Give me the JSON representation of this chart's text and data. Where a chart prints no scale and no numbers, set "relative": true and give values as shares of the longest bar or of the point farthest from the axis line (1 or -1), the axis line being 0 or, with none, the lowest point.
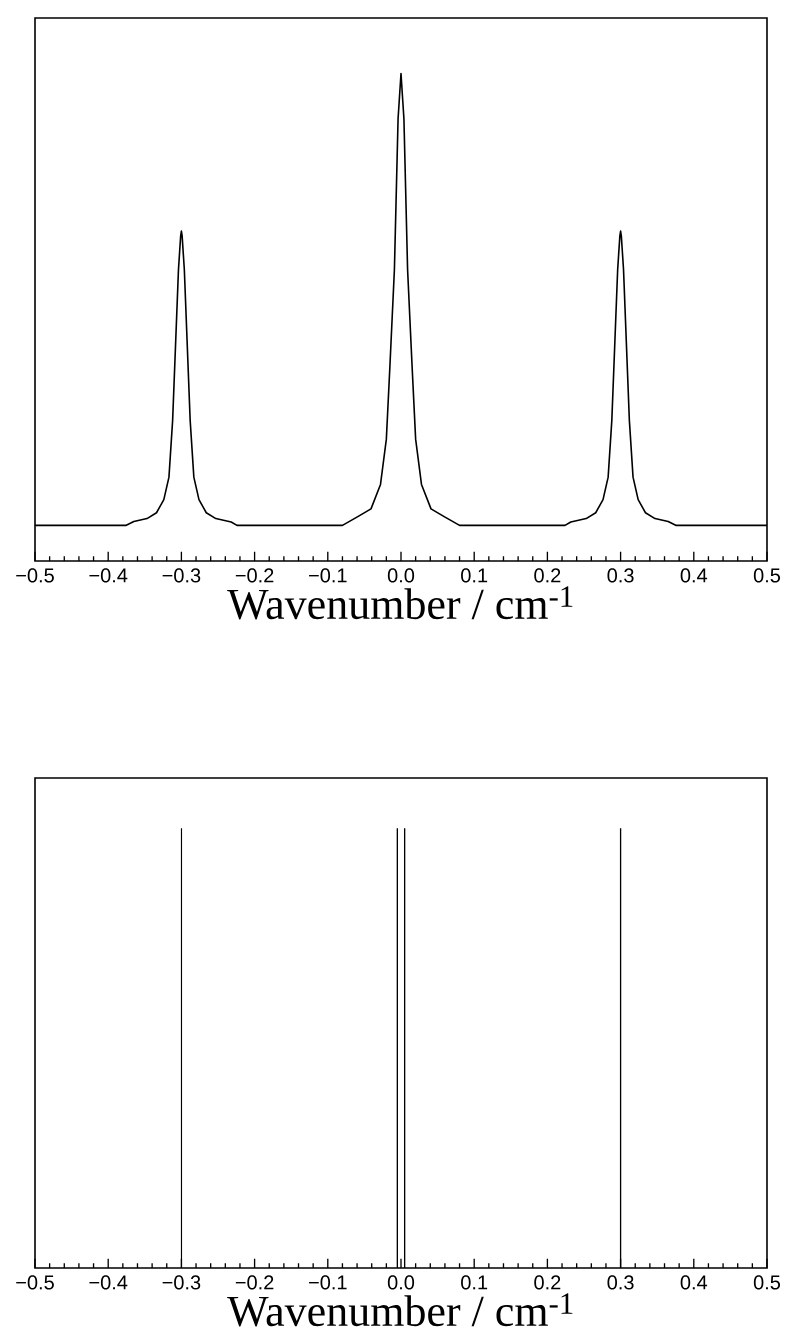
{
  "chart_data": [
    {
      "type": "line",
      "relative": true,
      "xlabel": "Wavenumber / cm$^{-1}$",
      "xlim": [
        -0.5,
        0.5
      ],
      "xticks": [
        {
          "value": -0.5,
          "label": "−0.5"
        },
        {
          "value": -0.4,
          "label": "−0.4"
        },
        {
          "value": -0.3,
          "label": "−0.3"
        },
        {
          "value": -0.2,
          "label": "−0.2"
        },
        {
          "value": -0.1,
          "label": "−0.1"
        },
        {
          "value": 0.0,
          "label": "0.0"
        },
        {
          "value": 0.1,
          "label": "0.1"
        },
        {
          "value": 0.2,
          "label": "0.2"
        },
        {
          "value": 0.3,
          "label": "0.3"
        },
        {
          "value": 0.4,
          "label": "0.4"
        },
        {
          "value": 0.5,
          "label": "0.5"
        }
      ],
      "tick_labels": "x",
      "color": "#000000",
      "x": [
        -0.5,
        -0.376,
        -0.365,
        -0.347,
        -0.334,
        -0.324,
        -0.317,
        -0.312,
        -0.308,
        -0.304,
        -0.301,
        -0.3,
        -0.299,
        -0.296,
        -0.292,
        -0.288,
        -0.283,
        -0.276,
        -0.266,
        -0.253,
        -0.232,
        -0.224,
        -0.08,
        -0.059,
        -0.041,
        -0.028,
        -0.02,
        -0.015,
        -0.009,
        -0.004,
        0.0,
        0.004,
        0.009,
        0.015,
        0.02,
        0.028,
        0.041,
        0.059,
        0.08,
        0.224,
        0.232,
        0.253,
        0.266,
        0.276,
        0.283,
        0.288,
        0.292,
        0.296,
        0.299,
        0.3,
        0.301,
        0.304,
        0.308,
        0.312,
        0.317,
        0.324,
        0.334,
        0.347,
        0.365,
        0.376,
        0.5
      ],
      "values": [
        0.073,
        0.073,
        0.081,
        0.087,
        0.099,
        0.126,
        0.172,
        0.288,
        0.443,
        0.598,
        0.667,
        0.677,
        0.667,
        0.598,
        0.443,
        0.288,
        0.172,
        0.126,
        0.099,
        0.087,
        0.08,
        0.073,
        0.073,
        0.091,
        0.107,
        0.157,
        0.25,
        0.404,
        0.598,
        0.907,
        1.0,
        0.907,
        0.598,
        0.404,
        0.25,
        0.157,
        0.107,
        0.091,
        0.073,
        0.073,
        0.08,
        0.087,
        0.099,
        0.126,
        0.172,
        0.288,
        0.443,
        0.598,
        0.667,
        0.677,
        0.667,
        0.598,
        0.443,
        0.288,
        0.172,
        0.126,
        0.099,
        0.087,
        0.081,
        0.073,
        0.073
      ]
    },
    {
      "type": "bar",
      "relative": true,
      "xlabel": "Wavenumber / cm$^{-1}$",
      "xlim": [
        -0.5,
        0.5
      ],
      "xticks": [
        {
          "value": -0.5,
          "label": "−0.5"
        },
        {
          "value": -0.4,
          "label": "−0.4"
        },
        {
          "value": -0.3,
          "label": "−0.3"
        },
        {
          "value": -0.2,
          "label": "−0.2"
        },
        {
          "value": -0.1,
          "label": "−0.1"
        },
        {
          "value": 0.0,
          "label": "0.0"
        },
        {
          "value": 0.1,
          "label": "0.1"
        },
        {
          "value": 0.2,
          "label": "0.2"
        },
        {
          "value": 0.3,
          "label": "0.3"
        },
        {
          "value": 0.4,
          "label": "0.4"
        },
        {
          "value": 0.5,
          "label": "0.5"
        }
      ],
      "tick_labels": "x",
      "color": "#000000",
      "x": [
        -0.3,
        -0.005,
        0.005,
        0.3
      ],
      "values": [
        1,
        1,
        1,
        1
      ]
    }
  ]
}
